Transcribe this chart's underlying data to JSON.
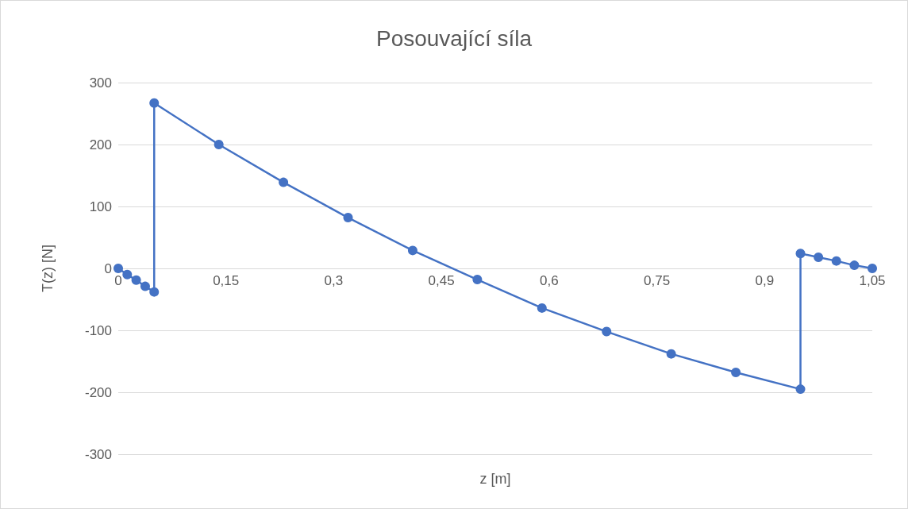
{
  "chart_data": {
    "type": "line",
    "title": "Posouvající síla",
    "xlabel": "z [m]",
    "ylabel": "T(z) [N]",
    "x": [
      0,
      0.0125,
      0.025,
      0.0375,
      0.05,
      0.05,
      0.14,
      0.23,
      0.32,
      0.41,
      0.5,
      0.59,
      0.68,
      0.77,
      0.86,
      0.95,
      0.95,
      0.975,
      1.0,
      1.025,
      1.05
    ],
    "series": [
      {
        "color": "#4472c4",
        "values": [
          0,
          -10,
          -19,
          -29,
          -38,
          267,
          200,
          139,
          82,
          29,
          -18,
          -64,
          -102,
          -138,
          -168,
          -195,
          24,
          18,
          12,
          5,
          0
        ]
      }
    ],
    "xlim": [
      0,
      1.05
    ],
    "xticks": [
      0,
      {
        "value": 0.15,
        "label": "0,15"
      },
      {
        "value": 0.3,
        "label": "0,3"
      },
      {
        "value": 0.45,
        "label": "0,45"
      },
      {
        "value": 0.6,
        "label": "0,6"
      },
      {
        "value": 0.75,
        "label": "0,75"
      },
      {
        "value": 0.9,
        "label": "0,9"
      },
      {
        "value": 1.05,
        "label": "1,05"
      }
    ],
    "ylim": [
      -300,
      300
    ],
    "yticks": [
      -300,
      -200,
      -100,
      0,
      100,
      200,
      300
    ],
    "grid": "y",
    "marker": "circle",
    "line_style": "solid"
  }
}
